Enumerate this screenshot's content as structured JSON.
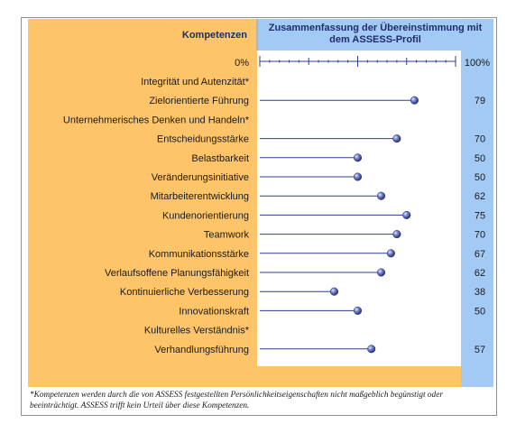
{
  "chart_data": {
    "type": "dot",
    "header_left": "Kompetenzen",
    "header_right": "Zusammenfassung der Übereinstimmung mit dem ASSESS-Profil",
    "header_right_lines": [
      "Zusammenfassung der Übereinstimmung mit",
      "dem ASSESS-Profil"
    ],
    "axis_min_label": "0%",
    "axis_max_label": "100%",
    "xlim": [
      0,
      100
    ],
    "items": [
      {
        "label": "Integrität und Autenzität*",
        "value": null
      },
      {
        "label": "Zielorientierte Führung",
        "value": 79
      },
      {
        "label": "Unternehmerisches Denken und Handeln*",
        "value": null
      },
      {
        "label": "Entscheidungsstärke",
        "value": 70
      },
      {
        "label": "Belastbarkeit",
        "value": 50
      },
      {
        "label": "Veränderungsinitiative",
        "value": 50
      },
      {
        "label": "Mitarbeiterentwicklung",
        "value": 62
      },
      {
        "label": "Kundenorientierung",
        "value": 75
      },
      {
        "label": "Teamwork",
        "value": 70
      },
      {
        "label": "Kommunikationsstärke",
        "value": 67
      },
      {
        "label": "Verlaufsoffene Planungsfähigkeit",
        "value": 62
      },
      {
        "label": "Kontinuierliche Verbesserung",
        "value": 38
      },
      {
        "label": "Innovationskraft",
        "value": 50
      },
      {
        "label": "Kulturelles Verständnis*",
        "value": null
      },
      {
        "label": "Verhandlungsführung",
        "value": 57
      }
    ],
    "colors": {
      "left_panel": "#fdc46a",
      "right_header": "#a3c9f5",
      "value_column": "#a3c9f5",
      "header_text": "#1f2d6b",
      "line": "#2e3f8f",
      "dot": "#5563b5"
    }
  },
  "footnote": "*Kompetenzen werden durch die von ASSESS festgestellten Persönlichkeitseigenschaften nicht maßgeblich begünstigt oder beeinträchtigt. ASSESS trifft kein Urteil über diese Kompetenzen."
}
